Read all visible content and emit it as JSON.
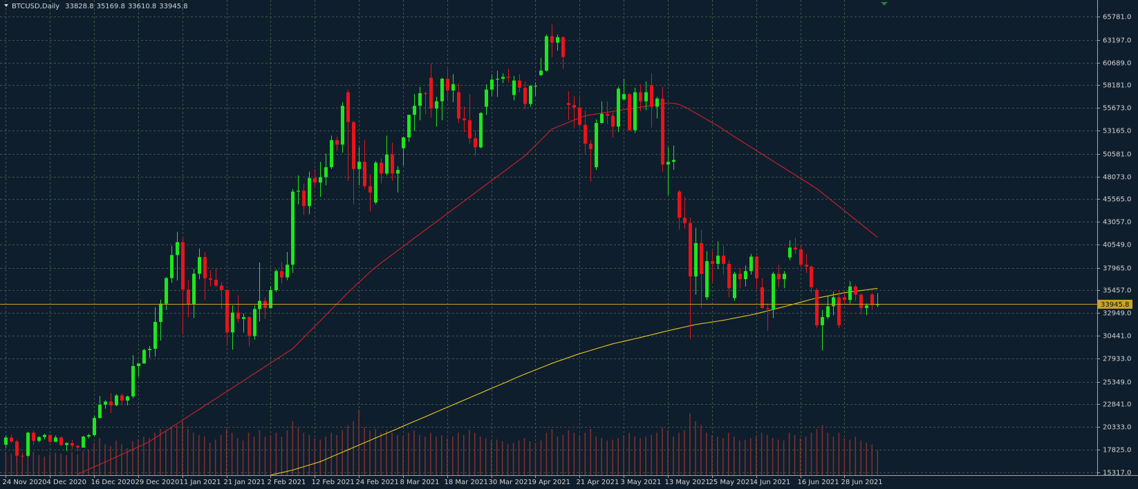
{
  "chart_data": {
    "type": "candlestick",
    "title": "BTCUSD,Daily",
    "categories": [
      "24 Nov 2020",
      null,
      null,
      null,
      null,
      null,
      null,
      null,
      "4 Dec 2020",
      null,
      null,
      null,
      null,
      null,
      null,
      null,
      "16 Dec 2020",
      null,
      null,
      null,
      null,
      null,
      null,
      null,
      "29 Dec 2020",
      null,
      null,
      null,
      null,
      null,
      null,
      null,
      "11 Jan 2021",
      null,
      null,
      null,
      null,
      null,
      null,
      null,
      "21 Jan 2021",
      null,
      null,
      null,
      null,
      null,
      null,
      null,
      "2 Feb 2021",
      null,
      null,
      null,
      null,
      null,
      null,
      null,
      "12 Feb 2021",
      null,
      null,
      null,
      null,
      null,
      null,
      null,
      "24 Feb 2021",
      null,
      null,
      null,
      null,
      null,
      null,
      null,
      "8 Mar 2021",
      null,
      null,
      null,
      null,
      null,
      null,
      null,
      "18 Mar 2021",
      null,
      null,
      null,
      null,
      null,
      null,
      null,
      "30 Mar 2021",
      null,
      null,
      null,
      null,
      null,
      null,
      null,
      "9 Apr 2021",
      null,
      null,
      null,
      null,
      null,
      null,
      null,
      "21 Apr 2021",
      null,
      null,
      null,
      null,
      null,
      null,
      null,
      "3 May 2021",
      null,
      null,
      null,
      null,
      null,
      null,
      null,
      "13 May 2021",
      null,
      null,
      null,
      null,
      null,
      null,
      null,
      "25 May 2021",
      null,
      null,
      null,
      null,
      null,
      null,
      null,
      "4 Jun 2021",
      null,
      null,
      null,
      null,
      null,
      null,
      null,
      "16 Jun 2021",
      null,
      null,
      null,
      null,
      null,
      null,
      null,
      "28 Jun 2021",
      null,
      null,
      null,
      null,
      null,
      null
    ],
    "open": [
      18370,
      19160,
      18720,
      17150,
      17140,
      19700,
      18790,
      19220,
      19450,
      18700,
      19170,
      18330,
      18550,
      18260,
      18050,
      19270,
      19430,
      21330,
      22800,
      23140,
      22740,
      23820,
      23250,
      23720,
      27080,
      27370,
      28860,
      28990,
      31970,
      33990,
      36820,
      39370,
      40800,
      35560,
      33900,
      37300,
      39150,
      36800,
      36630,
      36000,
      35500,
      30800,
      33000,
      32300,
      32500,
      30400,
      33400,
      34300,
      33500,
      35500,
      37600,
      36900,
      38300,
      46400,
      46500,
      44800,
      47900,
      47400,
      48000,
      49100,
      52100,
      51600,
      57400,
      54100,
      48900,
      49700,
      47000,
      45200,
      49600,
      48400,
      50500,
      48400,
      51200,
      52400,
      54900,
      55900,
      57300,
      59000,
      55600,
      56400,
      58900,
      57600,
      57400,
      54500,
      54300,
      52300,
      51300,
      55800,
      57700,
      58800,
      58900,
      59100,
      57100,
      58700,
      57900,
      56100,
      58100,
      59300,
      59800,
      63600,
      62900,
      63500,
      56200,
      56000,
      55700,
      53800,
      51700,
      49100,
      54000,
      55000,
      54800,
      53600,
      56600,
      57200,
      53200,
      57400,
      56400,
      58200,
      55800,
      56700,
      49400,
      49700,
      46400,
      43500,
      42900,
      37000,
      40700,
      34700,
      38700,
      38400,
      39300,
      38400,
      34600,
      37300,
      36700,
      37600,
      39200,
      35800,
      33500,
      33400,
      37300,
      36700,
      39100,
      40200,
      40000,
      38300,
      38100,
      35500,
      31600,
      32500,
      33700,
      34700,
      34700,
      34400,
      35900,
      35000,
      33500,
      35000,
      33828.8
    ],
    "high": [
      19420,
      19480,
      18920,
      17480,
      19800,
      19920,
      19310,
      19560,
      19500,
      19390,
      19280,
      18640,
      18910,
      18310,
      19330,
      19570,
      21560,
      23770,
      23290,
      24100,
      23960,
      24070,
      23800,
      28280,
      27400,
      28990,
      29300,
      33600,
      34440,
      36940,
      40370,
      41950,
      41280,
      36600,
      37850,
      40100,
      39700,
      37700,
      37850,
      36400,
      35600,
      33800,
      34900,
      32900,
      32600,
      33800,
      38550,
      34700,
      35950,
      37800,
      38600,
      39700,
      46700,
      48200,
      47300,
      48600,
      48900,
      49700,
      50600,
      52600,
      52500,
      56300,
      57700,
      54200,
      51300,
      52100,
      48300,
      49800,
      50100,
      52600,
      51800,
      49200,
      52500,
      54900,
      57200,
      58000,
      57500,
      60600,
      56900,
      59000,
      60000,
      59400,
      58400,
      55800,
      57200,
      53200,
      55200,
      58300,
      59400,
      59800,
      59500,
      60000,
      59200,
      59400,
      58600,
      58200,
      58500,
      61200,
      63800,
      64900,
      63800,
      63600,
      57500,
      57000,
      56800,
      55400,
      52100,
      54400,
      56400,
      56400,
      55200,
      58000,
      58900,
      57300,
      57900,
      58300,
      58600,
      59500,
      56900,
      58000,
      51300,
      51500,
      46600,
      45800,
      43500,
      42400,
      42200,
      39800,
      39800,
      40900,
      40400,
      38800,
      37500,
      37900,
      38200,
      39500,
      39300,
      36800,
      34000,
      37500,
      38300,
      37600,
      41000,
      41300,
      40500,
      39500,
      38200,
      35700,
      33300,
      34800,
      35300,
      35500,
      35200,
      36500,
      36100,
      35100,
      34000,
      35200,
      35169.8
    ],
    "low": [
      18020,
      18560,
      16500,
      16830,
      17000,
      18350,
      18640,
      18960,
      18560,
      18650,
      18210,
      17650,
      17900,
      17600,
      18020,
      19060,
      19300,
      21250,
      22370,
      21900,
      22620,
      22750,
      22720,
      23500,
      25900,
      27320,
      28000,
      28130,
      29900,
      33280,
      36300,
      36550,
      30550,
      32500,
      32400,
      36700,
      34400,
      35900,
      35800,
      33400,
      29500,
      28900,
      31900,
      30800,
      29250,
      30000,
      32000,
      32300,
      33400,
      35300,
      36200,
      36600,
      37400,
      45000,
      43800,
      43900,
      46800,
      45800,
      47100,
      48900,
      50900,
      50700,
      47600,
      45000,
      47100,
      46700,
      44200,
      45000,
      47300,
      48200,
      47600,
      46300,
      49300,
      51900,
      53100,
      54300,
      55000,
      54600,
      53600,
      54300,
      56500,
      56300,
      54000,
      53000,
      51700,
      50400,
      51200,
      54900,
      57000,
      56900,
      58400,
      58500,
      56500,
      57400,
      55500,
      55800,
      57000,
      59200,
      59700,
      61300,
      62000,
      60000,
      54300,
      53400,
      53500,
      50500,
      47500,
      48800,
      53900,
      53900,
      52400,
      53000,
      56500,
      53100,
      52900,
      55300,
      55400,
      53500,
      54500,
      48600,
      46000,
      48800,
      42200,
      42300,
      30100,
      35000,
      33500,
      34400,
      36400,
      37800,
      37200,
      34700,
      34300,
      35700,
      35900,
      37200,
      35600,
      33400,
      31000,
      32400,
      35800,
      35700,
      38800,
      39500,
      38000,
      37400,
      35200,
      31300,
      28800,
      32300,
      32700,
      31300,
      33900,
      34000,
      34300,
      32800,
      32700,
      33300,
      33610.8
    ],
    "close": [
      19160,
      18720,
      17150,
      17140,
      19700,
      18790,
      19220,
      19450,
      18700,
      19170,
      18330,
      18550,
      18260,
      18050,
      19270,
      19430,
      21330,
      22800,
      23140,
      22740,
      23820,
      23250,
      23720,
      27080,
      27370,
      28860,
      28990,
      31970,
      33990,
      36820,
      39370,
      40800,
      35560,
      33900,
      37300,
      39150,
      36800,
      36630,
      36000,
      35500,
      30800,
      33000,
      32300,
      32500,
      30400,
      33400,
      34300,
      33500,
      35500,
      37600,
      36900,
      38300,
      46400,
      46500,
      44800,
      47900,
      47400,
      48000,
      49100,
      52100,
      51600,
      55900,
      54100,
      48900,
      49700,
      47000,
      46300,
      49600,
      48400,
      50500,
      48400,
      48800,
      52400,
      54900,
      55900,
      57300,
      57200,
      55600,
      56400,
      58900,
      57600,
      58300,
      54500,
      54300,
      52300,
      51300,
      55100,
      57700,
      58800,
      58900,
      59100,
      59000,
      58700,
      57900,
      56100,
      58100,
      58100,
      59800,
      63600,
      62900,
      63500,
      61300,
      56000,
      55700,
      53800,
      51700,
      51100,
      54000,
      55000,
      54800,
      53600,
      57800,
      57200,
      53200,
      57400,
      56400,
      57400,
      55800,
      56700,
      49400,
      49700,
      49900,
      43500,
      42900,
      37000,
      40700,
      37300,
      38700,
      38400,
      39300,
      38400,
      35700,
      37300,
      36700,
      37600,
      39200,
      36800,
      33500,
      33400,
      37300,
      36700,
      37300,
      40200,
      40000,
      38300,
      38100,
      35800,
      31600,
      32500,
      33700,
      34700,
      31600,
      34400,
      35900,
      35000,
      33500,
      33800,
      33830,
      33945.8
    ],
    "volume": [
      30,
      28,
      40,
      25,
      33,
      30,
      26,
      24,
      27,
      29,
      28,
      26,
      30,
      27,
      31,
      33,
      42,
      48,
      40,
      38,
      45,
      40,
      35,
      44,
      46,
      50,
      48,
      55,
      60,
      58,
      62,
      65,
      70,
      60,
      55,
      52,
      50,
      42,
      46,
      52,
      60,
      55,
      48,
      45,
      55,
      50,
      58,
      50,
      52,
      55,
      50,
      58,
      70,
      62,
      55,
      52,
      48,
      46,
      50,
      55,
      52,
      58,
      65,
      70,
      85,
      62,
      58,
      60,
      55,
      58,
      55,
      52,
      50,
      55,
      58,
      52,
      50,
      55,
      50,
      52,
      48,
      50,
      55,
      52,
      58,
      55,
      50,
      48,
      45,
      46,
      44,
      40,
      42,
      45,
      48,
      44,
      42,
      45,
      55,
      60,
      50,
      52,
      58,
      55,
      52,
      55,
      60,
      50,
      48,
      45,
      46,
      48,
      52,
      55,
      50,
      48,
      50,
      52,
      55,
      62,
      58,
      50,
      55,
      58,
      80,
      70,
      65,
      55,
      52,
      50,
      48,
      55,
      50,
      45,
      46,
      48,
      50,
      55,
      52,
      48,
      46,
      45,
      55,
      52,
      48,
      50,
      55,
      60,
      65,
      55,
      50,
      55,
      48,
      46,
      50,
      45,
      42,
      40,
      32
    ],
    "moving_averages": [
      {
        "color": "#d2202a",
        "values": [
          null,
          null,
          null,
          null,
          null,
          null,
          null,
          null,
          null,
          null,
          null,
          null,
          null,
          15100,
          15370,
          15640,
          15910,
          16180,
          16450,
          16720,
          17000,
          17280,
          17560,
          17840,
          18120,
          18400,
          18700,
          19100,
          19490,
          19890,
          20280,
          20680,
          21080,
          21470,
          21870,
          22260,
          22660,
          23060,
          23450,
          23850,
          24240,
          24640,
          25040,
          25430,
          25830,
          26220,
          26620,
          27020,
          27410,
          27810,
          28200,
          28600,
          29000,
          29620,
          30240,
          30860,
          31480,
          32100,
          32720,
          33340,
          33960,
          34580,
          35200,
          35780,
          36350,
          36920,
          37480,
          38000,
          38500,
          38950,
          39410,
          39860,
          40320,
          40770,
          41230,
          41680,
          42140,
          42590,
          43040,
          43500,
          43950,
          44410,
          44860,
          45320,
          45770,
          46230,
          46680,
          47140,
          47590,
          48040,
          48500,
          48950,
          49410,
          49860,
          50320,
          50920,
          51520,
          52120,
          52720,
          53320,
          53570,
          53820,
          54070,
          54320,
          54570,
          54800,
          54900,
          54990,
          55090,
          55180,
          55280,
          55370,
          55470,
          55560,
          55660,
          55750,
          55850,
          55940,
          56040,
          56130,
          56220,
          56180,
          56050,
          55800,
          55450,
          55100,
          54750,
          54400,
          54050,
          53700,
          53300,
          52900,
          52500,
          52120,
          51730,
          51350,
          50960,
          50580,
          50190,
          49810,
          49420,
          49040,
          48650,
          48270,
          47880,
          47500,
          47110,
          46730,
          46240,
          45750,
          45260,
          44770,
          44280,
          43790,
          43300,
          42810,
          42320,
          41830,
          41340
        ]
      },
      {
        "color": "#e8c81c",
        "values": [
          null,
          null,
          null,
          null,
          null,
          null,
          null,
          null,
          null,
          null,
          null,
          null,
          null,
          null,
          null,
          null,
          null,
          null,
          null,
          null,
          null,
          null,
          null,
          null,
          null,
          null,
          null,
          null,
          null,
          null,
          null,
          null,
          null,
          null,
          null,
          null,
          null,
          null,
          null,
          null,
          null,
          null,
          null,
          null,
          null,
          null,
          null,
          null,
          15000,
          15140,
          15280,
          15420,
          15560,
          15750,
          15930,
          16120,
          16300,
          16490,
          16750,
          17020,
          17280,
          17540,
          17800,
          18060,
          18320,
          18590,
          18850,
          19110,
          19370,
          19630,
          19890,
          20150,
          20420,
          20680,
          20940,
          21200,
          21460,
          21720,
          21990,
          22250,
          22510,
          22770,
          23030,
          23290,
          23550,
          23820,
          24080,
          24340,
          24600,
          24860,
          25120,
          25380,
          25650,
          25910,
          26170,
          26410,
          26650,
          26900,
          27140,
          27380,
          27600,
          27810,
          28020,
          28240,
          28450,
          28630,
          28810,
          29000,
          29180,
          29360,
          29540,
          29680,
          29820,
          29960,
          30100,
          30240,
          30390,
          30540,
          30690,
          30840,
          30990,
          31130,
          31260,
          31400,
          31540,
          31670,
          31770,
          31860,
          31950,
          32050,
          32140,
          32260,
          32380,
          32500,
          32620,
          32740,
          32870,
          33020,
          33180,
          33330,
          33490,
          33640,
          33810,
          33970,
          34140,
          34300,
          34470,
          34600,
          34720,
          34840,
          34960,
          35080,
          35200,
          35280,
          35360,
          35440,
          35520,
          35600,
          35680
        ]
      }
    ],
    "ylim": [
      14994,
      67388
    ],
    "yticks": [
      {
        "value": 15317,
        "label": "15317.0"
      },
      {
        "value": 17825,
        "label": "17825.0"
      },
      {
        "value": 20333,
        "label": "20333.0"
      },
      {
        "value": 22841,
        "label": "22841.0"
      },
      {
        "value": 25349,
        "label": "25349.0"
      },
      {
        "value": 27933,
        "label": "27933.0"
      },
      {
        "value": 30441,
        "label": "30441.0"
      },
      {
        "value": 32949,
        "label": "32949.0"
      },
      {
        "value": 35457,
        "label": "35457.0"
      },
      {
        "value": 37965,
        "label": "37965.0"
      },
      {
        "value": 40549,
        "label": "40549.0"
      },
      {
        "value": 43057,
        "label": "43057.0"
      },
      {
        "value": 45565,
        "label": "45565.0"
      },
      {
        "value": 48073,
        "label": "48073.0"
      },
      {
        "value": 50581,
        "label": "50581.0"
      },
      {
        "value": 53165,
        "label": "53165.0"
      },
      {
        "value": 55673,
        "label": "55673.0"
      },
      {
        "value": 58181,
        "label": "58181.0"
      },
      {
        "value": 60689,
        "label": "60689.0"
      },
      {
        "value": 63197,
        "label": "63197.0"
      },
      {
        "value": 65781,
        "label": "65781.0"
      }
    ],
    "grid": true,
    "up_color": "#1ee61e",
    "down_color": "#e8141a",
    "volume_color": "#84302e",
    "last_price_color": "#c9a227",
    "background": "#0f1e2d"
  }
}
